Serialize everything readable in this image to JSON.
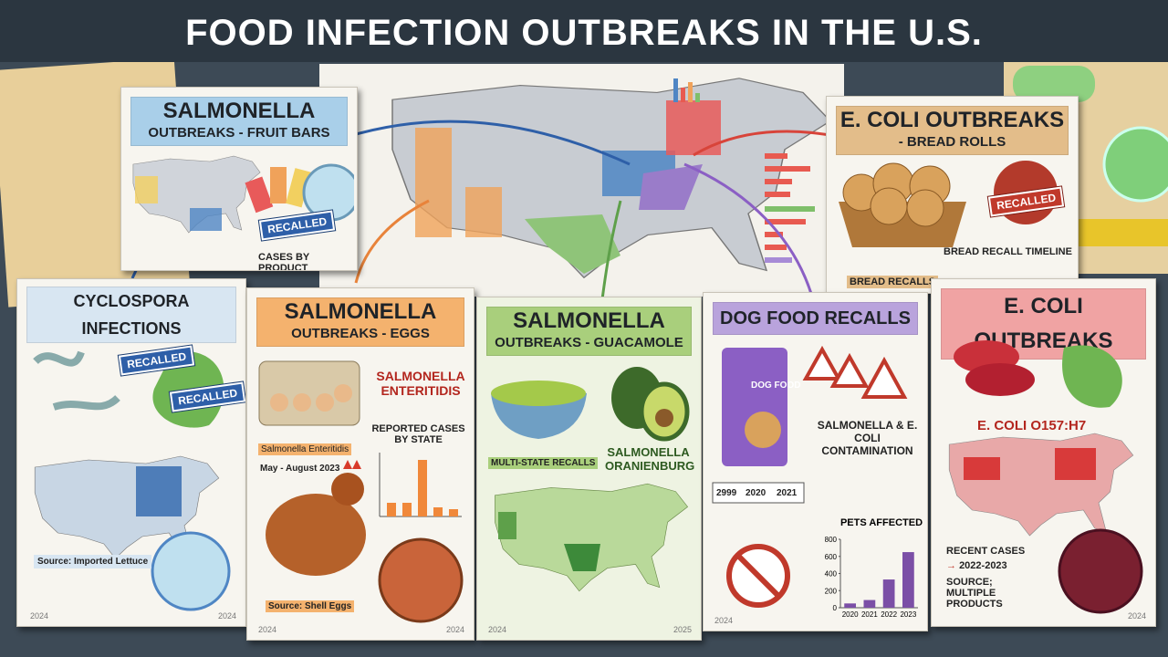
{
  "header": {
    "title": "FOOD INFECTION OUTBREAKS IN THE U.S."
  },
  "fruit_bars": {
    "title": "SALMONELLA",
    "subtitle": "OUTBREAKS - FRUIT BARS",
    "badge": "RECALLED",
    "caption": "CASES BY PRODUCT"
  },
  "bread_rolls": {
    "title": "E. COLI OUTBREAKS",
    "subtitle": "- BREAD ROLLS",
    "badge": "RECALLED",
    "caption": "BREAD RECALL TIMELINE",
    "footer": "BREAD RECALLS"
  },
  "cyclospora": {
    "title": "CYCLOSPORA INFECTIONS",
    "badges": [
      "RECALLED",
      "RECALLED"
    ],
    "source": "Source: Imported Lettuce",
    "year_left": "2024",
    "year_right": "2024"
  },
  "eggs": {
    "title": "SALMONELLA",
    "subtitle": "OUTBREAKS - EGGS",
    "strain": "SALMONELLA ENTERITIDIS",
    "chart_title": "REPORTED CASES BY STATE",
    "note": "Salmonella Enteritidis",
    "period": "May - August 2023",
    "source": "Source: Shell Eggs",
    "year_left": "2024",
    "year_right": "2024"
  },
  "guacamole": {
    "title": "SALMONELLA",
    "subtitle": "OUTBREAKS - GUACAMOLE",
    "tag": "MULTI-STATE RECALLS",
    "strain": "SALMONELLA ORANIENBURG",
    "year_left": "2024",
    "year_right": "2025"
  },
  "dog_food": {
    "title": "DOG FOOD RECALLS",
    "bag": "DOG FOOD",
    "contamination": "SALMONELLA & E. COLI CONTAMINATION",
    "timeline": [
      "2999",
      "2020",
      "2021"
    ],
    "year_left": "2024",
    "pets_chart": {
      "type": "bar",
      "title": "PETS AFFECTED",
      "categories": [
        "2020",
        "2021",
        "2022",
        "2023"
      ],
      "values": [
        50,
        90,
        330,
        650
      ],
      "color": "#7b4fa6",
      "ylim": [
        0,
        800
      ],
      "yticks": [
        0,
        200,
        400,
        600,
        800
      ]
    }
  },
  "ecoli": {
    "title": "E. COLI OUTBREAKS",
    "strain": "E. COLI O157:H7",
    "recent": "RECENT CASES",
    "range": "2022-2023",
    "source": "SOURCE; MULTIPLE PRODUCTS",
    "year_right": "2024"
  }
}
